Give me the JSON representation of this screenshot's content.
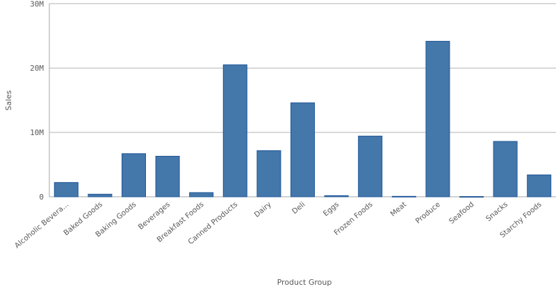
{
  "chart_data": {
    "type": "bar",
    "title": "",
    "xlabel": "Product Group",
    "ylabel": "Sales",
    "ylim": [
      0,
      30000000
    ],
    "yticks": [
      0,
      10000000,
      20000000,
      30000000
    ],
    "ytick_labels": [
      "0",
      "10M",
      "20M",
      "30M"
    ],
    "grid": true,
    "bar_color": "#4477aa",
    "categories": [
      "Alcoholic Bevera...",
      "Baked Goods",
      "Baking Goods",
      "Beverages",
      "Breakfast Foods",
      "Canned Products",
      "Dairy",
      "Deli",
      "Eggs",
      "Frozen Foods",
      "Meat",
      "Produce",
      "Seafood",
      "Snacks",
      "Starchy Foods"
    ],
    "values": [
      2220000,
      400000,
      6700000,
      6300000,
      650000,
      20500000,
      7170000,
      14600000,
      180000,
      9430000,
      70000,
      24160000,
      40000,
      8600000,
      3400000
    ]
  }
}
